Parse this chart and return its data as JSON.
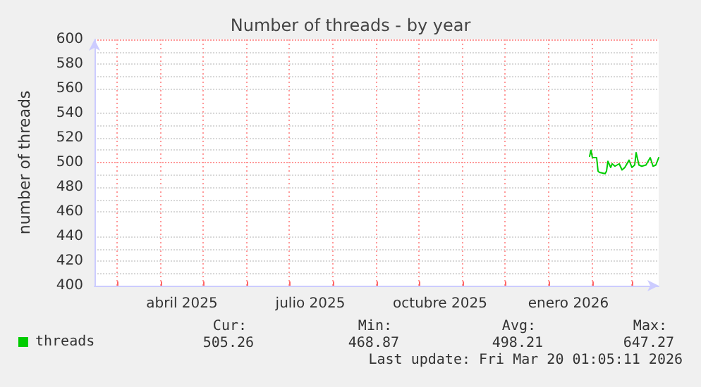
{
  "chart_data": {
    "type": "line",
    "title": "Number of threads - by year",
    "ylabel": "number of threads",
    "x": [
      "2026-01-30",
      "2026-01-31",
      "2026-02-01",
      "2026-02-04",
      "2026-02-05",
      "2026-02-06",
      "2026-02-10",
      "2026-02-11",
      "2026-02-12",
      "2026-02-14",
      "2026-02-15",
      "2026-02-17",
      "2026-02-20",
      "2026-02-22",
      "2026-02-24",
      "2026-02-27",
      "2026-03-01",
      "2026-03-03",
      "2026-03-04",
      "2026-03-06",
      "2026-03-08",
      "2026-03-11",
      "2026-03-14",
      "2026-03-16",
      "2026-03-18",
      "2026-03-20"
    ],
    "series": [
      {
        "name": "threads",
        "color": "#00cc00",
        "values": [
          505,
          510,
          504,
          504,
          493,
          492,
          491,
          493,
          501,
          496,
          499,
          497,
          499,
          494,
          496,
          502,
          496,
          498,
          508,
          498,
          497,
          498,
          504,
          497,
          498,
          504
        ]
      }
    ],
    "xlim": [
      "2025-02-13",
      "2026-03-20"
    ],
    "xticks": [
      {
        "value": "2025-03-01",
        "label": null
      },
      {
        "value": "2025-04-01",
        "label": null
      },
      {
        "value": "2025-04-16",
        "label": "abril 2025"
      },
      {
        "value": "2025-05-01",
        "label": null
      },
      {
        "value": "2025-06-01",
        "label": null
      },
      {
        "value": "2025-07-01",
        "label": null
      },
      {
        "value": "2025-07-16",
        "label": "julio 2025"
      },
      {
        "value": "2025-08-01",
        "label": null
      },
      {
        "value": "2025-09-01",
        "label": null
      },
      {
        "value": "2025-10-01",
        "label": null
      },
      {
        "value": "2025-10-16",
        "label": "octubre 2025"
      },
      {
        "value": "2025-11-01",
        "label": null
      },
      {
        "value": "2025-12-01",
        "label": null
      },
      {
        "value": "2026-01-01",
        "label": null
      },
      {
        "value": "2026-01-15",
        "label": "enero 2026"
      },
      {
        "value": "2026-02-01",
        "label": null
      },
      {
        "value": "2026-03-01",
        "label": null
      }
    ],
    "ylim": [
      400,
      600
    ],
    "yticks": [
      400,
      420,
      440,
      460,
      480,
      500,
      520,
      540,
      560,
      580,
      600
    ],
    "grid": true,
    "legend": "bottom left",
    "marker": "none",
    "line_style": "solid",
    "annotations": [
      "Cur:",
      "Min:",
      "Avg:",
      "Max:",
      "505.26",
      "468.87",
      "498.21",
      "647.27",
      "Last update: Fri Mar 20 01:05:11 2026"
    ]
  }
}
